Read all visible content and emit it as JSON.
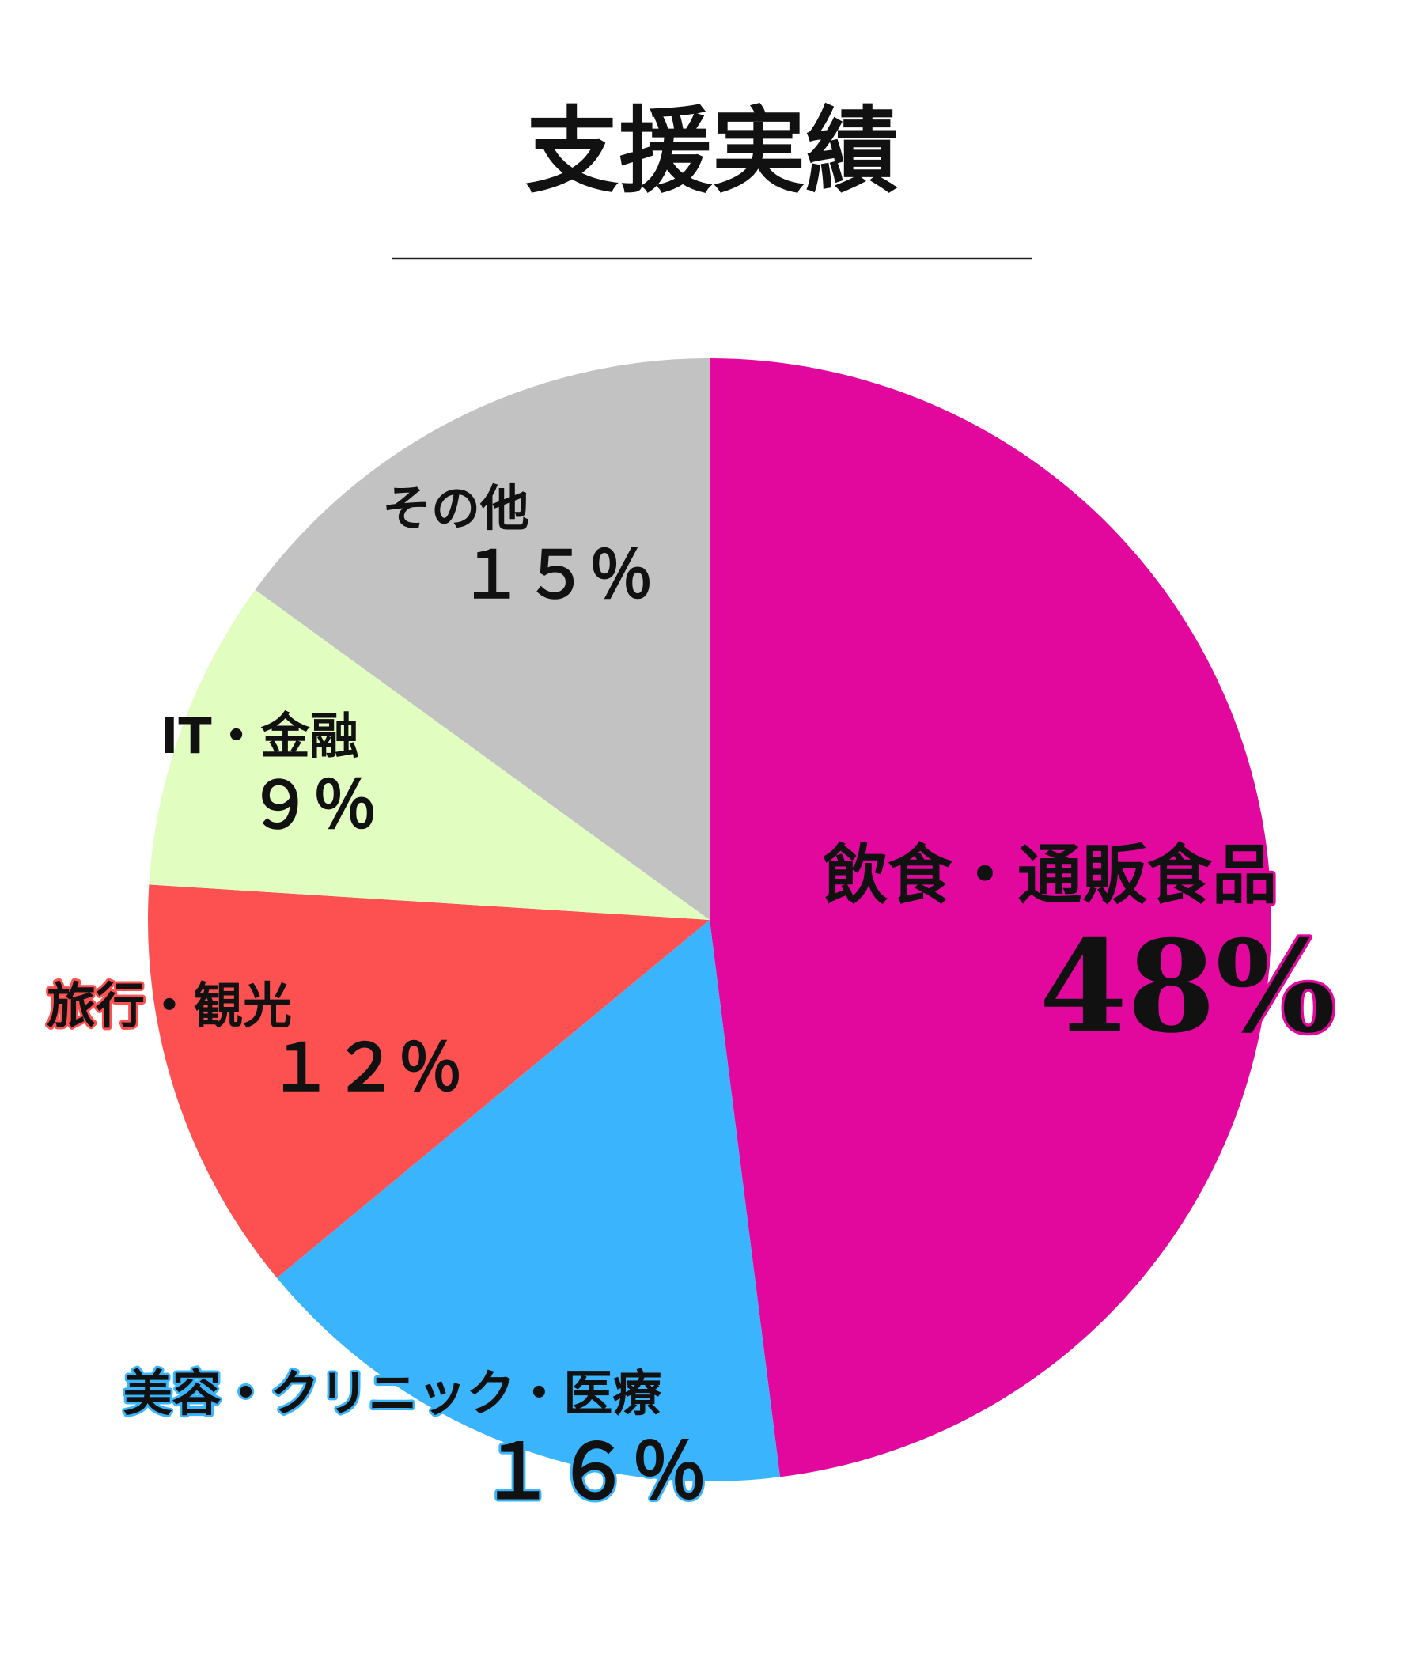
{
  "chart_data": {
    "type": "pie",
    "title": "支援実績",
    "categories": [
      "飲食・通販食品",
      "美容・クリニック・医療",
      "旅行・観光",
      "IT・金融",
      "その他"
    ],
    "values": [
      48,
      16,
      12,
      9,
      15
    ],
    "value_labels": [
      "48%",
      "１６％",
      "１２％",
      "９％",
      "１５％"
    ],
    "colors": [
      "#e2089e",
      "#3ab4fc",
      "#fd5151",
      "#e1fdc0",
      "#c2c2c2"
    ]
  }
}
